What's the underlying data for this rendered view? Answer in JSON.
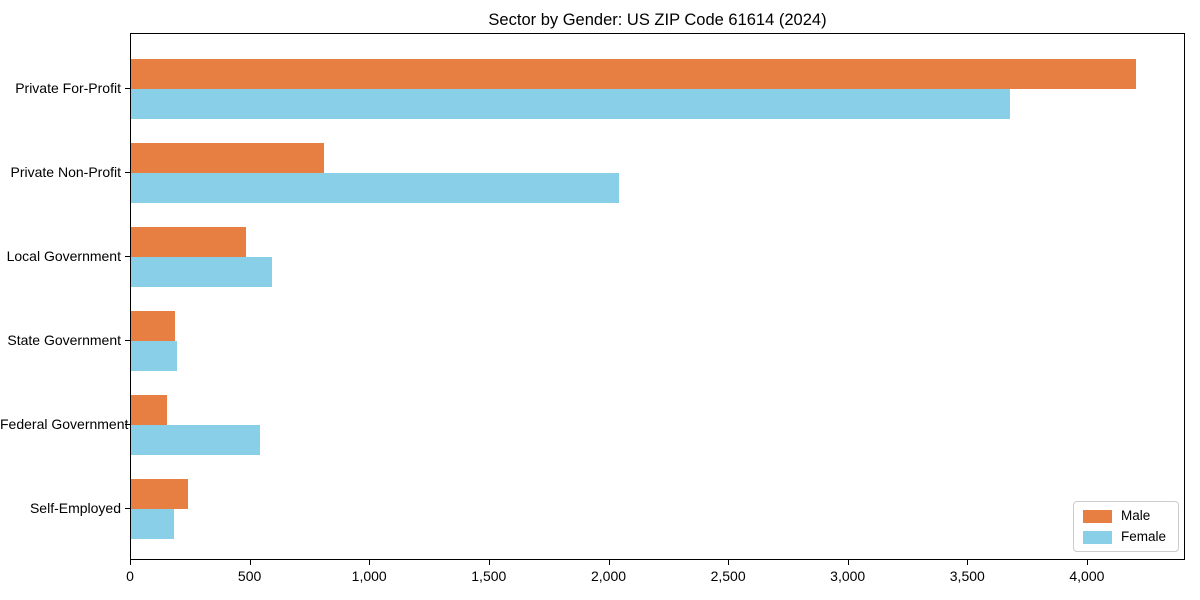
{
  "chart_data": {
    "type": "bar",
    "orientation": "horizontal",
    "title": "Sector by Gender: US ZIP Code 61614 (2024)",
    "categories": [
      "Private For-Profit",
      "Private Non-Profit",
      "Local Government",
      "State Government",
      "Federal Government",
      "Self-Employed"
    ],
    "series": [
      {
        "name": "Male",
        "color": "#e87f42",
        "values": [
          4200,
          805,
          480,
          185,
          150,
          240
        ]
      },
      {
        "name": "Female",
        "color": "#89cfe8",
        "values": [
          3675,
          2040,
          590,
          190,
          540,
          180
        ]
      }
    ],
    "xlabel": "",
    "ylabel": "",
    "xlim": [
      0,
      4410
    ],
    "xticks": [
      0,
      500,
      1000,
      1500,
      2000,
      2500,
      3000,
      3500,
      4000
    ],
    "xtick_labels": [
      "0",
      "500",
      "1,000",
      "1,500",
      "2,000",
      "2,500",
      "3,000",
      "3,500",
      "4,000"
    ],
    "grid": false,
    "legend": {
      "position": "lower-right",
      "entries": [
        "Male",
        "Female"
      ]
    },
    "colors": {
      "male": "#e87f42",
      "female": "#89cfe8",
      "spine": "#000000",
      "legend_border": "#cccccc",
      "background": "#ffffff"
    }
  }
}
